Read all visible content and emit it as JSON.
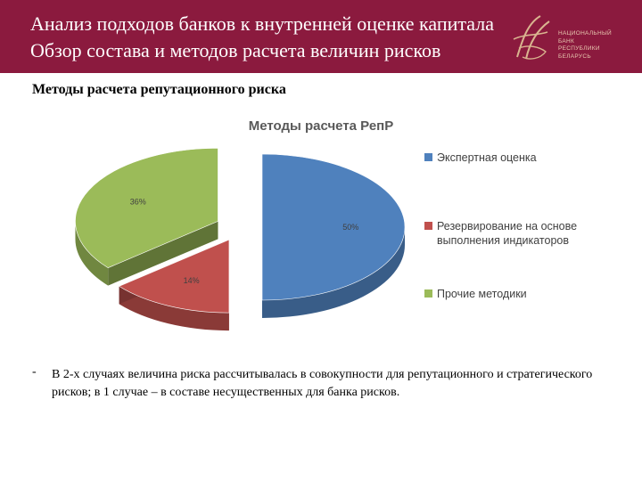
{
  "header": {
    "title_line1": "Анализ подходов банков к внутренней оценке капитала",
    "title_line2": "Обзор состава и методов расчета величин рисков",
    "logo_text": [
      "НАЦИОНАЛЬНЫЙ",
      "БАНК",
      "РЕСПУБЛИКИ",
      "БЕЛАРУСЬ"
    ]
  },
  "subtitle": "Методы расчета репутационного риска",
  "chart_data": {
    "type": "pie",
    "title": "Методы расчета РепР",
    "style": "3d-exploded",
    "legend_position": "right",
    "slices": [
      {
        "label": "Экспертная оценка",
        "value": 50,
        "display": "50%",
        "color": "#4f81bd"
      },
      {
        "label": "Резервирование на основе выполнения индикаторов",
        "value": 14,
        "display": "14%",
        "color": "#c0504d"
      },
      {
        "label": "Прочие методики",
        "value": 36,
        "display": "36%",
        "color": "#9bbb59"
      }
    ],
    "legend": [
      [
        "Экспертная оценка"
      ],
      [
        "Резервирование на основе",
        "выполнения индикаторов"
      ],
      [
        "Прочие методики"
      ]
    ]
  },
  "note": {
    "bullet": "-",
    "text": "В 2-х случаях величина риска рассчитывалась в совокупности для репутационного и стратегического рисков; в 1 случае – в составе несущественных для банка рисков."
  }
}
